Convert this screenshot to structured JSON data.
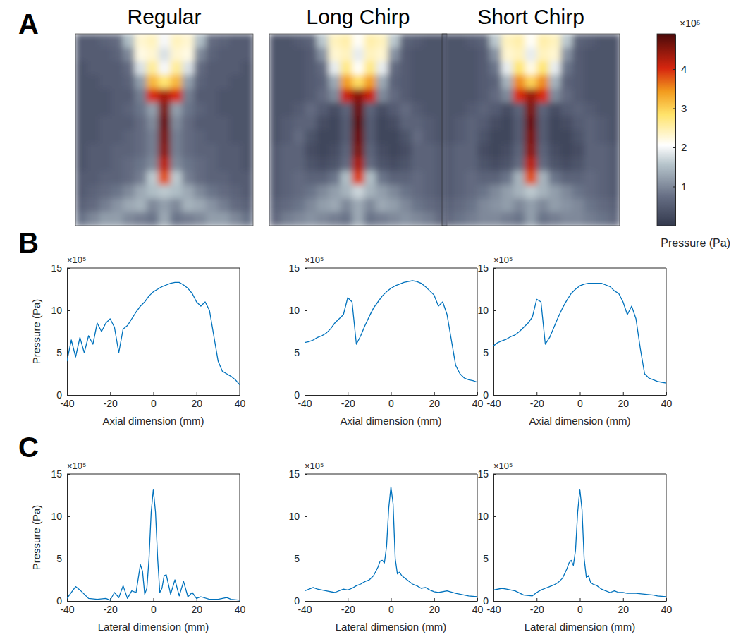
{
  "panel_labels": [
    "A",
    "B",
    "C"
  ],
  "chart_data": [
    {
      "type": "heatmap",
      "title": "Regular",
      "tick_labels": false,
      "values": [
        [
          0.5,
          0.5,
          0.6,
          0.7,
          1.5,
          2.3,
          2.4,
          2.0,
          2.4,
          2.3,
          1.5,
          0.7,
          0.6,
          0.5,
          0.5
        ],
        [
          0.5,
          0.5,
          0.5,
          0.6,
          1.0,
          2.2,
          2.3,
          1.8,
          2.3,
          2.2,
          1.0,
          0.6,
          0.5,
          0.5,
          0.5
        ],
        [
          0.4,
          0.5,
          0.5,
          0.5,
          0.7,
          1.8,
          2.6,
          2.0,
          2.6,
          1.8,
          0.7,
          0.5,
          0.5,
          0.5,
          0.4
        ],
        [
          0.4,
          0.4,
          0.5,
          0.5,
          0.6,
          1.2,
          3.2,
          2.8,
          3.2,
          1.2,
          0.6,
          0.5,
          0.5,
          0.4,
          0.4
        ],
        [
          0.4,
          0.4,
          0.4,
          0.5,
          0.5,
          0.9,
          4.0,
          4.3,
          4.0,
          0.9,
          0.5,
          0.5,
          0.4,
          0.4,
          0.4
        ],
        [
          0.4,
          0.4,
          0.4,
          0.5,
          0.6,
          0.8,
          1.2,
          4.6,
          1.2,
          0.8,
          0.6,
          0.5,
          0.4,
          0.4,
          0.4
        ],
        [
          0.4,
          0.4,
          0.5,
          0.5,
          0.5,
          0.7,
          1.0,
          4.7,
          1.0,
          0.7,
          0.5,
          0.5,
          0.5,
          0.4,
          0.4
        ],
        [
          0.4,
          0.4,
          0.5,
          0.5,
          0.6,
          0.7,
          0.9,
          4.6,
          0.9,
          0.7,
          0.6,
          0.5,
          0.5,
          0.4,
          0.4
        ],
        [
          0.4,
          0.5,
          0.5,
          0.6,
          0.6,
          0.7,
          0.9,
          4.5,
          0.9,
          0.7,
          0.6,
          0.6,
          0.5,
          0.5,
          0.4
        ],
        [
          0.4,
          0.5,
          0.5,
          0.6,
          0.7,
          0.8,
          1.0,
          4.2,
          1.0,
          0.8,
          0.7,
          0.6,
          0.5,
          0.5,
          0.4
        ],
        [
          0.5,
          0.5,
          0.6,
          0.6,
          0.7,
          0.9,
          1.6,
          3.8,
          1.6,
          0.9,
          0.7,
          0.6,
          0.6,
          0.5,
          0.5
        ],
        [
          0.5,
          0.6,
          0.7,
          0.8,
          1.0,
          1.3,
          1.5,
          1.6,
          1.5,
          1.3,
          1.0,
          0.8,
          0.7,
          0.6,
          0.5
        ],
        [
          0.6,
          0.7,
          0.9,
          1.1,
          1.3,
          1.4,
          1.0,
          1.2,
          1.0,
          1.4,
          1.3,
          1.1,
          0.9,
          0.7,
          0.6
        ],
        [
          0.8,
          1.0,
          1.2,
          1.2,
          1.0,
          0.9,
          0.8,
          1.3,
          0.8,
          0.9,
          1.0,
          1.2,
          1.2,
          1.0,
          0.8
        ]
      ]
    },
    {
      "type": "heatmap",
      "title": "Long Chirp",
      "tick_labels": false,
      "values": [
        [
          0.4,
          0.4,
          0.5,
          0.6,
          1.6,
          2.4,
          2.5,
          2.1,
          2.5,
          2.4,
          1.6,
          0.6,
          0.5,
          0.4,
          0.4
        ],
        [
          0.4,
          0.4,
          0.4,
          0.5,
          1.1,
          2.3,
          2.4,
          1.9,
          2.4,
          2.3,
          1.1,
          0.5,
          0.4,
          0.4,
          0.4
        ],
        [
          0.4,
          0.4,
          0.4,
          0.5,
          0.7,
          1.9,
          2.7,
          2.1,
          2.7,
          1.9,
          0.7,
          0.5,
          0.4,
          0.4,
          0.4
        ],
        [
          0.4,
          0.4,
          0.4,
          0.5,
          0.6,
          1.3,
          3.4,
          2.9,
          3.4,
          1.3,
          0.6,
          0.5,
          0.4,
          0.4,
          0.4
        ],
        [
          0.4,
          0.4,
          0.4,
          0.5,
          0.7,
          1.0,
          4.1,
          4.5,
          4.1,
          1.0,
          0.7,
          0.5,
          0.4,
          0.4,
          0.4
        ],
        [
          0.4,
          0.4,
          0.5,
          0.7,
          0.5,
          0.3,
          0.6,
          4.7,
          0.6,
          0.3,
          0.5,
          0.7,
          0.5,
          0.4,
          0.4
        ],
        [
          0.4,
          0.5,
          0.6,
          0.6,
          0.3,
          0.2,
          0.5,
          4.8,
          0.5,
          0.2,
          0.3,
          0.6,
          0.6,
          0.5,
          0.4
        ],
        [
          0.4,
          0.5,
          0.7,
          0.4,
          0.2,
          0.2,
          0.5,
          4.7,
          0.5,
          0.2,
          0.2,
          0.4,
          0.7,
          0.5,
          0.4
        ],
        [
          0.5,
          0.6,
          0.6,
          0.3,
          0.2,
          0.3,
          0.6,
          4.6,
          0.6,
          0.3,
          0.2,
          0.3,
          0.6,
          0.6,
          0.5
        ],
        [
          0.5,
          0.6,
          0.6,
          0.4,
          0.3,
          0.4,
          0.7,
          4.3,
          0.7,
          0.4,
          0.3,
          0.4,
          0.6,
          0.6,
          0.5
        ],
        [
          0.5,
          0.6,
          0.7,
          0.6,
          0.6,
          0.8,
          1.5,
          3.9,
          1.5,
          0.8,
          0.6,
          0.6,
          0.7,
          0.6,
          0.5
        ],
        [
          0.5,
          0.6,
          0.7,
          0.8,
          1.0,
          1.2,
          1.4,
          1.7,
          1.4,
          1.2,
          1.0,
          0.8,
          0.7,
          0.6,
          0.5
        ],
        [
          0.6,
          0.7,
          0.8,
          1.0,
          1.2,
          1.3,
          1.0,
          1.3,
          1.0,
          1.3,
          1.2,
          1.0,
          0.8,
          0.7,
          0.6
        ],
        [
          0.7,
          0.9,
          1.0,
          1.1,
          1.0,
          0.9,
          0.8,
          1.3,
          0.8,
          0.9,
          1.0,
          1.1,
          1.0,
          0.9,
          0.7
        ]
      ]
    },
    {
      "type": "heatmap",
      "title": "Short Chirp",
      "tick_labels": false,
      "colorbar": {
        "range": [
          0,
          4.9
        ],
        "ticks": [
          1,
          2,
          3,
          4
        ],
        "label": "Pressure (Pa)",
        "annotation": "×10⁵"
      },
      "values": [
        [
          0.4,
          0.4,
          0.5,
          0.6,
          1.6,
          2.4,
          2.5,
          2.1,
          2.5,
          2.4,
          1.6,
          0.6,
          0.5,
          0.4,
          0.4
        ],
        [
          0.4,
          0.4,
          0.4,
          0.5,
          1.1,
          2.3,
          2.4,
          1.9,
          2.4,
          2.3,
          1.1,
          0.5,
          0.4,
          0.4,
          0.4
        ],
        [
          0.4,
          0.4,
          0.4,
          0.5,
          0.8,
          1.9,
          2.8,
          2.2,
          2.8,
          1.9,
          0.8,
          0.5,
          0.4,
          0.4,
          0.4
        ],
        [
          0.4,
          0.4,
          0.4,
          0.5,
          0.6,
          1.4,
          3.5,
          3.0,
          3.5,
          1.4,
          0.6,
          0.5,
          0.4,
          0.4,
          0.4
        ],
        [
          0.4,
          0.4,
          0.4,
          0.5,
          0.7,
          1.0,
          4.0,
          4.4,
          4.0,
          1.0,
          0.7,
          0.5,
          0.4,
          0.4,
          0.4
        ],
        [
          0.4,
          0.4,
          0.5,
          0.6,
          0.5,
          0.3,
          0.6,
          4.6,
          0.6,
          0.3,
          0.5,
          0.6,
          0.5,
          0.4,
          0.4
        ],
        [
          0.4,
          0.5,
          0.6,
          0.5,
          0.3,
          0.2,
          0.5,
          4.7,
          0.5,
          0.2,
          0.3,
          0.5,
          0.6,
          0.5,
          0.4
        ],
        [
          0.4,
          0.5,
          0.6,
          0.4,
          0.2,
          0.2,
          0.5,
          4.6,
          0.5,
          0.2,
          0.2,
          0.4,
          0.6,
          0.5,
          0.4
        ],
        [
          0.5,
          0.6,
          0.6,
          0.3,
          0.2,
          0.3,
          0.6,
          4.5,
          0.6,
          0.3,
          0.2,
          0.3,
          0.6,
          0.6,
          0.5
        ],
        [
          0.5,
          0.6,
          0.6,
          0.4,
          0.3,
          0.4,
          0.7,
          4.2,
          0.7,
          0.4,
          0.3,
          0.4,
          0.6,
          0.6,
          0.5
        ],
        [
          0.5,
          0.6,
          0.7,
          0.6,
          0.6,
          0.8,
          1.4,
          3.8,
          1.4,
          0.8,
          0.6,
          0.6,
          0.7,
          0.6,
          0.5
        ],
        [
          0.5,
          0.6,
          0.7,
          0.8,
          1.0,
          1.2,
          1.4,
          1.6,
          1.4,
          1.2,
          1.0,
          0.8,
          0.7,
          0.6,
          0.5
        ],
        [
          0.6,
          0.7,
          0.8,
          1.0,
          1.1,
          1.2,
          1.0,
          1.2,
          1.0,
          1.2,
          1.1,
          1.0,
          0.8,
          0.7,
          0.6
        ],
        [
          0.7,
          0.8,
          0.9,
          1.0,
          1.0,
          0.9,
          0.8,
          1.2,
          0.8,
          0.9,
          1.0,
          1.0,
          0.9,
          0.8,
          0.7
        ]
      ]
    },
    {
      "type": "line",
      "x_label": "Axial dimension (mm)",
      "y_label": "Pressure (Pa)",
      "annotations": [
        "×10⁵"
      ],
      "color": "#0072bd",
      "xlim": [
        -40,
        40
      ],
      "ylim": [
        0,
        15
      ],
      "xticks": [
        -40,
        -20,
        0,
        20,
        40
      ],
      "yticks": [
        0,
        5,
        10,
        15
      ],
      "x": [
        -40,
        -38,
        -36,
        -34,
        -32,
        -30,
        -28,
        -26,
        -24,
        -22,
        -20,
        -18,
        -16,
        -14,
        -12,
        -10,
        -8,
        -6,
        -4,
        -2,
        0,
        2,
        4,
        6,
        8,
        10,
        12,
        14,
        16,
        18,
        20,
        22,
        24,
        26,
        28,
        30,
        32,
        34,
        36,
        38,
        40
      ],
      "values": [
        4.0,
        6.5,
        4.5,
        6.8,
        5.0,
        7.0,
        6.0,
        8.5,
        7.5,
        8.5,
        9.0,
        8.0,
        5.0,
        7.8,
        8.2,
        9.0,
        9.8,
        10.5,
        11.0,
        11.7,
        12.2,
        12.5,
        12.8,
        13.0,
        13.2,
        13.3,
        13.3,
        13.0,
        12.6,
        12.0,
        11.0,
        10.5,
        11.0,
        10.0,
        7.0,
        4.0,
        2.8,
        2.5,
        2.2,
        1.8,
        1.2
      ]
    },
    {
      "type": "line",
      "x_label": "Axial dimension (mm)",
      "annotations": [
        "×10⁵"
      ],
      "color": "#0072bd",
      "xlim": [
        -40,
        40
      ],
      "ylim": [
        0,
        15
      ],
      "xticks": [
        -40,
        -20,
        0,
        20,
        40
      ],
      "yticks": [
        0,
        5,
        10,
        15
      ],
      "x": [
        -40,
        -38,
        -36,
        -34,
        -32,
        -30,
        -28,
        -26,
        -24,
        -22,
        -20,
        -18,
        -16,
        -14,
        -12,
        -10,
        -8,
        -6,
        -4,
        -2,
        0,
        2,
        4,
        6,
        8,
        10,
        12,
        14,
        16,
        18,
        20,
        22,
        24,
        26,
        28,
        30,
        32,
        34,
        36,
        38,
        40
      ],
      "values": [
        6.2,
        6.3,
        6.5,
        6.8,
        7.0,
        7.3,
        7.8,
        8.5,
        9.0,
        9.5,
        11.5,
        11.0,
        6.0,
        7.0,
        8.2,
        9.3,
        10.3,
        11.0,
        11.7,
        12.2,
        12.6,
        12.9,
        13.1,
        13.3,
        13.4,
        13.5,
        13.4,
        13.2,
        12.8,
        12.3,
        11.8,
        10.5,
        11.0,
        9.5,
        6.5,
        3.5,
        2.5,
        2.0,
        1.8,
        1.7,
        1.5
      ]
    },
    {
      "type": "line",
      "x_label": "Axial dimension (mm)",
      "annotations": [
        "×10⁵"
      ],
      "color": "#0072bd",
      "xlim": [
        -40,
        40
      ],
      "ylim": [
        0,
        15
      ],
      "xticks": [
        -40,
        -20,
        0,
        20,
        40
      ],
      "yticks": [
        0,
        5,
        10,
        15
      ],
      "x": [
        -40,
        -38,
        -36,
        -34,
        -32,
        -30,
        -28,
        -26,
        -24,
        -22,
        -20,
        -18,
        -16,
        -14,
        -12,
        -10,
        -8,
        -6,
        -4,
        -2,
        0,
        2,
        4,
        6,
        8,
        10,
        12,
        14,
        16,
        18,
        20,
        22,
        24,
        26,
        28,
        30,
        32,
        34,
        36,
        38,
        40
      ],
      "values": [
        5.8,
        6.2,
        6.4,
        6.6,
        6.9,
        7.1,
        7.5,
        8.0,
        8.5,
        9.2,
        11.3,
        11.0,
        6.0,
        6.8,
        8.0,
        9.2,
        10.3,
        11.2,
        12.0,
        12.5,
        12.9,
        13.1,
        13.2,
        13.2,
        13.2,
        13.2,
        13.0,
        12.8,
        12.3,
        12.0,
        11.0,
        9.5,
        10.5,
        9.0,
        5.5,
        2.5,
        2.0,
        1.8,
        1.6,
        1.5,
        1.4
      ]
    },
    {
      "type": "line",
      "x_label": "Lateral dimension (mm)",
      "y_label": "Pressure (Pa)",
      "annotations": [
        "×10⁵"
      ],
      "color": "#0072bd",
      "xlim": [
        -40,
        40
      ],
      "ylim": [
        0,
        15
      ],
      "xticks": [
        -40,
        -20,
        0,
        20,
        40
      ],
      "yticks": [
        0,
        5,
        10,
        15
      ],
      "x": [
        -40,
        -36,
        -34,
        -30,
        -26,
        -22,
        -20,
        -18,
        -16,
        -14,
        -12,
        -10,
        -8,
        -6,
        -5,
        -4,
        -3,
        -2,
        -1,
        0,
        1,
        2,
        3,
        4,
        5,
        6,
        8,
        10,
        12,
        14,
        16,
        18,
        20,
        22,
        26,
        30,
        34,
        36,
        40
      ],
      "values": [
        0.3,
        1.7,
        1.3,
        0.3,
        0.2,
        0.3,
        0.1,
        1.0,
        0.4,
        1.8,
        0.3,
        1.2,
        1.0,
        4.3,
        3.5,
        0.8,
        1.5,
        5.0,
        10.5,
        13.2,
        10.5,
        5.0,
        1.0,
        1.5,
        3.0,
        3.1,
        0.8,
        2.5,
        0.6,
        2.3,
        0.5,
        1.0,
        0.3,
        0.5,
        0.2,
        0.2,
        0.4,
        0.2,
        0.1
      ]
    },
    {
      "type": "line",
      "x_label": "Lateral dimension (mm)",
      "annotations": [
        "×10⁵"
      ],
      "color": "#0072bd",
      "xlim": [
        -40,
        40
      ],
      "ylim": [
        0,
        15
      ],
      "xticks": [
        -40,
        -20,
        0,
        20,
        40
      ],
      "yticks": [
        0,
        5,
        10,
        15
      ],
      "x": [
        -40,
        -36,
        -34,
        -30,
        -26,
        -22,
        -20,
        -18,
        -16,
        -14,
        -12,
        -10,
        -8,
        -6,
        -5,
        -4,
        -3,
        -2,
        -1,
        0,
        1,
        2,
        3,
        4,
        5,
        6,
        8,
        10,
        12,
        14,
        16,
        18,
        20,
        22,
        26,
        30,
        34,
        36,
        40
      ],
      "values": [
        1.2,
        1.6,
        1.4,
        1.2,
        1.0,
        1.4,
        1.3,
        1.5,
        1.8,
        2.0,
        2.3,
        2.5,
        3.0,
        4.0,
        4.7,
        4.8,
        4.5,
        6.5,
        11.0,
        13.5,
        11.5,
        5.0,
        3.2,
        3.4,
        3.0,
        2.8,
        2.4,
        2.0,
        1.8,
        1.5,
        1.6,
        1.3,
        1.1,
        1.0,
        1.2,
        0.9,
        0.7,
        0.6,
        0.5
      ]
    },
    {
      "type": "line",
      "x_label": "Lateral dimension (mm)",
      "annotations": [
        "×10⁵"
      ],
      "color": "#0072bd",
      "xlim": [
        -40,
        40
      ],
      "ylim": [
        0,
        15
      ],
      "xticks": [
        -40,
        -20,
        0,
        20,
        40
      ],
      "yticks": [
        0,
        5,
        10,
        15
      ],
      "x": [
        -40,
        -36,
        -34,
        -30,
        -26,
        -22,
        -20,
        -18,
        -16,
        -14,
        -12,
        -10,
        -8,
        -6,
        -5,
        -4,
        -3,
        -2,
        -1,
        0,
        1,
        2,
        3,
        4,
        5,
        6,
        8,
        10,
        12,
        14,
        16,
        18,
        20,
        22,
        26,
        30,
        34,
        36,
        40
      ],
      "values": [
        1.3,
        1.5,
        1.4,
        1.2,
        0.7,
        0.6,
        1.0,
        1.3,
        1.5,
        1.7,
        1.9,
        2.2,
        2.7,
        3.8,
        4.5,
        4.8,
        4.2,
        6.0,
        10.5,
        13.2,
        10.8,
        5.0,
        2.8,
        3.0,
        2.2,
        2.0,
        1.8,
        1.4,
        1.2,
        1.0,
        1.2,
        1.0,
        1.0,
        0.9,
        0.9,
        0.8,
        0.7,
        0.6,
        0.5
      ]
    }
  ]
}
